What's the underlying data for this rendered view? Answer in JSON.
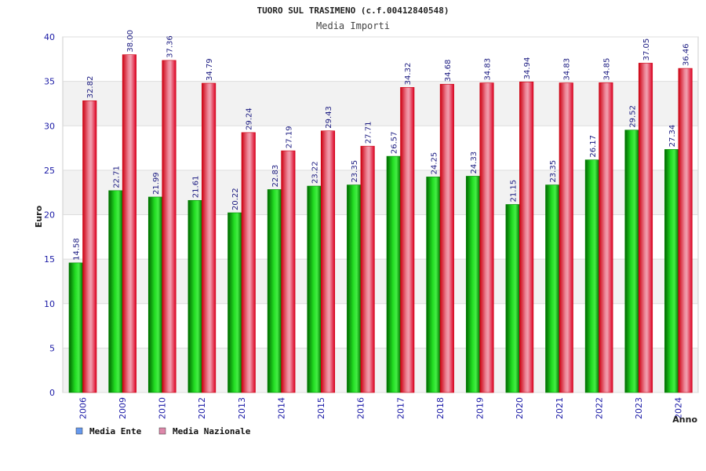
{
  "chart_data": {
    "type": "bar",
    "title": "TUORO SUL TRASIMENO (c.f.00412840548)",
    "subtitle": "Media Importi",
    "xlabel": "Anno",
    "ylabel": "Euro",
    "ylim": [
      0,
      40
    ],
    "yticks": [
      "0",
      "5",
      "10",
      "15",
      "20",
      "25",
      "30",
      "35",
      "40"
    ],
    "grid": true,
    "legend_position": "bottom-left",
    "categories": [
      "2006",
      "2009",
      "2010",
      "2012",
      "2013",
      "2014",
      "2015",
      "2016",
      "2017",
      "2018",
      "2019",
      "2020",
      "2021",
      "2022",
      "2023",
      "2024"
    ],
    "series": [
      {
        "name": "Media Ente",
        "color": "#00aa00",
        "legend_color": "#6699ee",
        "values": [
          14.58,
          22.71,
          21.99,
          21.61,
          20.22,
          22.83,
          23.22,
          23.35,
          26.57,
          24.25,
          24.33,
          21.15,
          23.35,
          26.17,
          29.52,
          27.34
        ],
        "labels": [
          "14.58",
          "22.71",
          "21.99",
          "21.61",
          "20.22",
          "22.83",
          "23.22",
          "23.35",
          "26.57",
          "24.25",
          "24.33",
          "21.15",
          "23.35",
          "26.17",
          "29.52",
          "27.34"
        ]
      },
      {
        "name": "Media Nazionale",
        "color": "#dd1122",
        "legend_color": "#dd88aa",
        "values": [
          32.82,
          38.0,
          37.36,
          34.79,
          29.24,
          27.19,
          29.43,
          27.71,
          34.32,
          34.68,
          34.83,
          34.94,
          34.83,
          34.85,
          37.05,
          36.46
        ],
        "labels": [
          "32.82",
          "38.00",
          "37.36",
          "34.79",
          "29.24",
          "27.19",
          "29.43",
          "27.71",
          "34.32",
          "34.68",
          "34.83",
          "34.94",
          "34.83",
          "34.85",
          "37.05",
          "36.46"
        ]
      }
    ]
  }
}
